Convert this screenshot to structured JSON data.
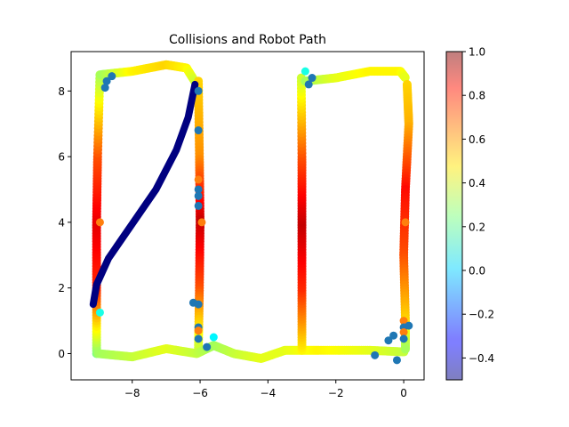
{
  "chart_data": {
    "type": "scatter",
    "title": "Collisions and Robot Path",
    "xlabel": "",
    "ylabel": "",
    "xlim": [
      -9.8,
      0.6
    ],
    "ylim": [
      -0.8,
      9.2
    ],
    "xticks": [
      -8,
      -6,
      -4,
      -2,
      0
    ],
    "xtick_labels": [
      "−8",
      "−6",
      "−4",
      "−2",
      "0"
    ],
    "yticks": [
      0,
      2,
      4,
      6,
      8
    ],
    "ytick_labels": [
      "0",
      "2",
      "4",
      "6",
      "8"
    ],
    "grid": false,
    "colorbar": {
      "colormap": "jet",
      "alpha": 0.5,
      "range": [
        -0.5,
        1.0
      ],
      "ticks": [
        -0.4,
        -0.2,
        0.0,
        0.2,
        0.4,
        0.6,
        0.8,
        1.0
      ],
      "tick_labels": [
        "−0.4",
        "−0.2",
        "0.0",
        "0.2",
        "0.4",
        "0.6",
        "0.8",
        "1.0"
      ]
    },
    "series": [
      {
        "kind": "path",
        "description": "robot path colored by value",
        "segments": [
          {
            "points": [
              [
                -9.05,
                0.0
              ],
              [
                -9.05,
                2.0
              ],
              [
                -9.05,
                4.0
              ],
              [
                -9.02,
                6.0
              ],
              [
                -8.95,
                8.6
              ]
            ],
            "values": [
              0.25,
              0.75,
              0.85,
              0.7,
              0.3
            ]
          },
          {
            "points": [
              [
                -8.9,
                8.5
              ],
              [
                -8.0,
                8.6
              ],
              [
                -7.0,
                8.8
              ],
              [
                -6.4,
                8.7
              ],
              [
                -6.1,
                8.2
              ]
            ],
            "values": [
              0.3,
              0.45,
              0.5,
              0.45,
              0.35
            ]
          },
          {
            "points": [
              [
                -6.05,
                8.3
              ],
              [
                -6.02,
                6.0
              ],
              [
                -6.0,
                4.0
              ],
              [
                -6.02,
                2.0
              ],
              [
                -6.05,
                0.1
              ]
            ],
            "values": [
              0.5,
              0.6,
              0.9,
              0.7,
              0.35
            ]
          },
          {
            "points": [
              [
                -9.0,
                0.0
              ],
              [
                -8.0,
                -0.1
              ],
              [
                -7.0,
                0.15
              ],
              [
                -6.1,
                0.0
              ],
              [
                -5.6,
                0.25
              ],
              [
                -5.0,
                0.0
              ],
              [
                -4.2,
                -0.15
              ],
              [
                -3.5,
                0.1
              ],
              [
                -2.5,
                0.1
              ],
              [
                -1.0,
                0.1
              ],
              [
                0.05,
                0.05
              ]
            ],
            "values": [
              0.3,
              0.35,
              0.4,
              0.35,
              0.3,
              0.35,
              0.4,
              0.4,
              0.45,
              0.4,
              0.35
            ]
          },
          {
            "points": [
              [
                -3.0,
                0.1
              ],
              [
                -3.0,
                2.0
              ],
              [
                -3.0,
                4.0
              ],
              [
                -3.0,
                6.0
              ],
              [
                -3.02,
                8.5
              ]
            ],
            "values": [
              0.45,
              0.75,
              0.9,
              0.7,
              0.35
            ]
          },
          {
            "points": [
              [
                -2.9,
                8.3
              ],
              [
                -2.0,
                8.4
              ],
              [
                -1.0,
                8.6
              ],
              [
                -0.1,
                8.6
              ],
              [
                0.05,
                8.4
              ]
            ],
            "values": [
              0.3,
              0.4,
              0.45,
              0.45,
              0.4
            ]
          },
          {
            "points": [
              [
                0.1,
                8.2
              ],
              [
                0.15,
                7.0
              ],
              [
                0.05,
                5.0
              ],
              [
                0.0,
                3.0
              ],
              [
                0.05,
                1.0
              ],
              [
                0.05,
                0.1
              ]
            ],
            "values": [
              0.5,
              0.55,
              0.8,
              0.7,
              0.5,
              0.3
            ]
          }
        ]
      },
      {
        "kind": "path",
        "description": "dark blue diagonal path",
        "value": -0.5,
        "points": [
          [
            -9.15,
            1.5
          ],
          [
            -9.05,
            2.1
          ],
          [
            -8.7,
            2.9
          ],
          [
            -8.0,
            3.95
          ],
          [
            -7.3,
            5.0
          ],
          [
            -6.7,
            6.2
          ],
          [
            -6.35,
            7.2
          ],
          [
            -6.15,
            8.2
          ]
        ]
      },
      {
        "kind": "scatter",
        "description": "collision points",
        "points": [
          {
            "x": -6.05,
            "y": 8.0,
            "c": -0.3
          },
          {
            "x": -6.05,
            "y": 6.8,
            "c": -0.3
          },
          {
            "x": -6.05,
            "y": 5.3,
            "c": 0.75
          },
          {
            "x": -6.05,
            "y": 5.0,
            "c": -0.3
          },
          {
            "x": -6.05,
            "y": 4.8,
            "c": -0.3
          },
          {
            "x": -6.05,
            "y": 4.5,
            "c": -0.3
          },
          {
            "x": -8.95,
            "y": 4.0,
            "c": 0.75
          },
          {
            "x": -5.95,
            "y": 4.0,
            "c": 0.75
          },
          {
            "x": -6.2,
            "y": 1.55,
            "c": -0.3
          },
          {
            "x": -6.05,
            "y": 1.5,
            "c": -0.3
          },
          {
            "x": -6.05,
            "y": 0.8,
            "c": -0.3
          },
          {
            "x": -6.05,
            "y": 0.7,
            "c": 0.75
          },
          {
            "x": -6.05,
            "y": 0.45,
            "c": -0.3
          },
          {
            "x": -0.85,
            "y": -0.05,
            "c": -0.3
          },
          {
            "x": 0.0,
            "y": 1.0,
            "c": 0.75
          },
          {
            "x": 0.0,
            "y": 0.8,
            "c": -0.3
          },
          {
            "x": 0.0,
            "y": 0.65,
            "c": 0.75
          },
          {
            "x": 0.0,
            "y": 0.45,
            "c": -0.3
          },
          {
            "x": 0.15,
            "y": 0.85,
            "c": -0.3
          },
          {
            "x": 0.05,
            "y": 4.0,
            "c": 0.75
          },
          {
            "x": -8.75,
            "y": 8.3,
            "c": -0.3
          },
          {
            "x": -8.8,
            "y": 8.1,
            "c": -0.3
          },
          {
            "x": -8.6,
            "y": 8.45,
            "c": -0.3
          },
          {
            "x": -2.8,
            "y": 8.2,
            "c": -0.3
          },
          {
            "x": -2.7,
            "y": 8.4,
            "c": -0.3
          },
          {
            "x": -2.9,
            "y": 8.6,
            "c": 0.1
          },
          {
            "x": -8.95,
            "y": 1.25,
            "c": 0.1
          },
          {
            "x": -5.8,
            "y": 0.2,
            "c": -0.3
          },
          {
            "x": -5.6,
            "y": 0.5,
            "c": 0.05
          },
          {
            "x": -0.45,
            "y": 0.4,
            "c": -0.3
          },
          {
            "x": -0.3,
            "y": 0.55,
            "c": -0.3
          },
          {
            "x": -0.2,
            "y": -0.2,
            "c": -0.3
          }
        ]
      }
    ]
  }
}
